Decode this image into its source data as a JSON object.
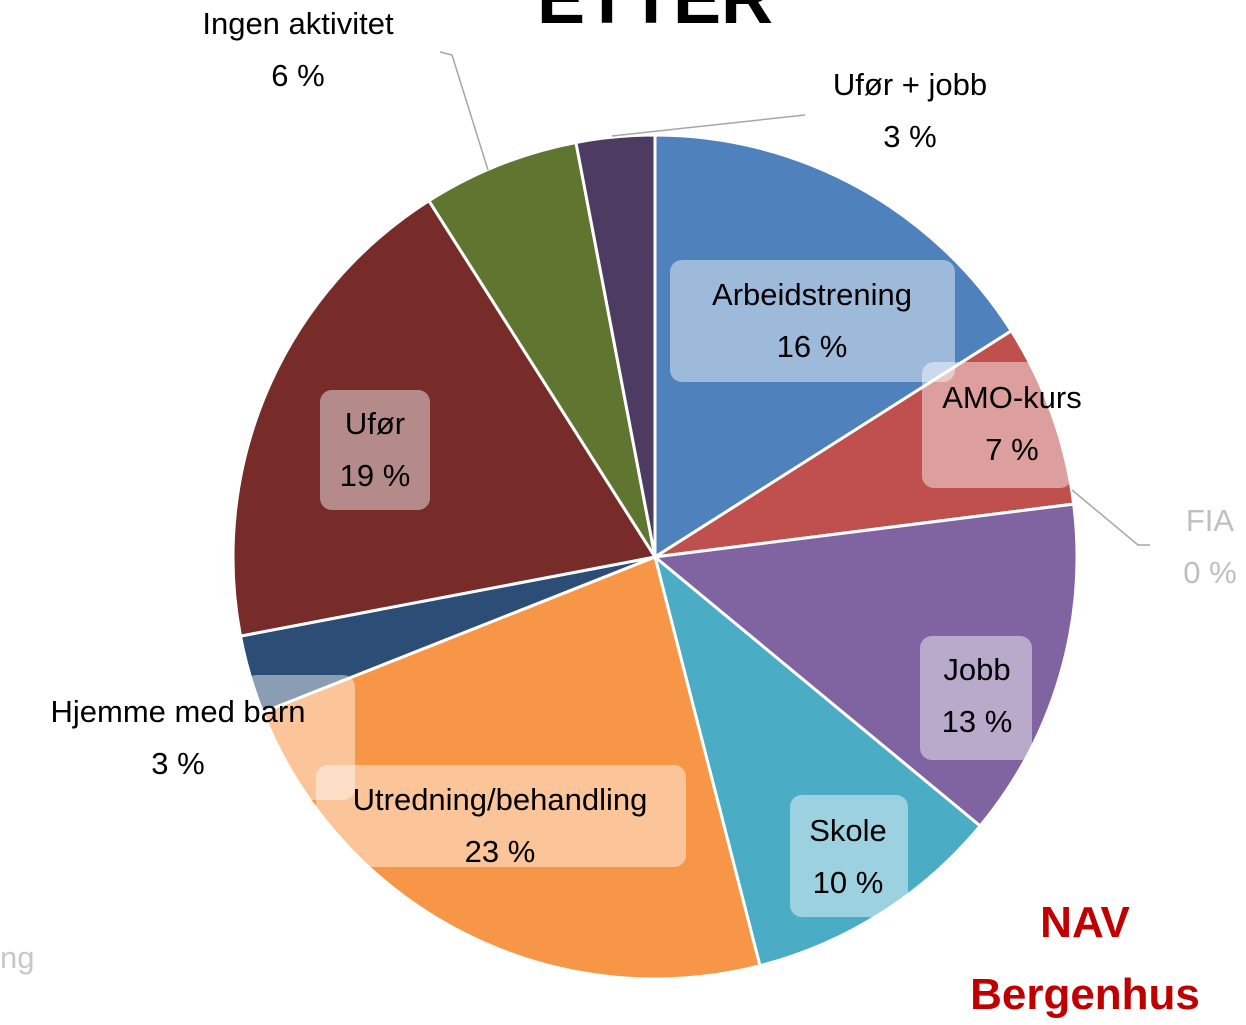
{
  "chart_data": {
    "type": "pie",
    "title": "ETTER",
    "categories": [
      "Arbeidstrening",
      "AMO-kurs",
      "FIA",
      "Jobb",
      "Skole",
      "Utredning/behandling",
      "Hjemme med barn",
      "Ufør",
      "Ingen aktivitet",
      "Ufør + jobb"
    ],
    "values": [
      16,
      7,
      0,
      13,
      10,
      23,
      3,
      19,
      6,
      3
    ],
    "value_labels": [
      "16 %",
      "7 %",
      "0 %",
      "13 %",
      "10 %",
      "23 %",
      "3 %",
      "19 %",
      "6 %",
      "3 %"
    ],
    "colors": [
      "#4f81bd",
      "#c0504d",
      "#9bbb59",
      "#8064a2",
      "#4bacc6",
      "#f79646",
      "#2c4d75",
      "#772c2a",
      "#5f7530",
      "#4d3b62"
    ],
    "annotation": "NAV Bergenhus",
    "partial_text": "ng"
  }
}
